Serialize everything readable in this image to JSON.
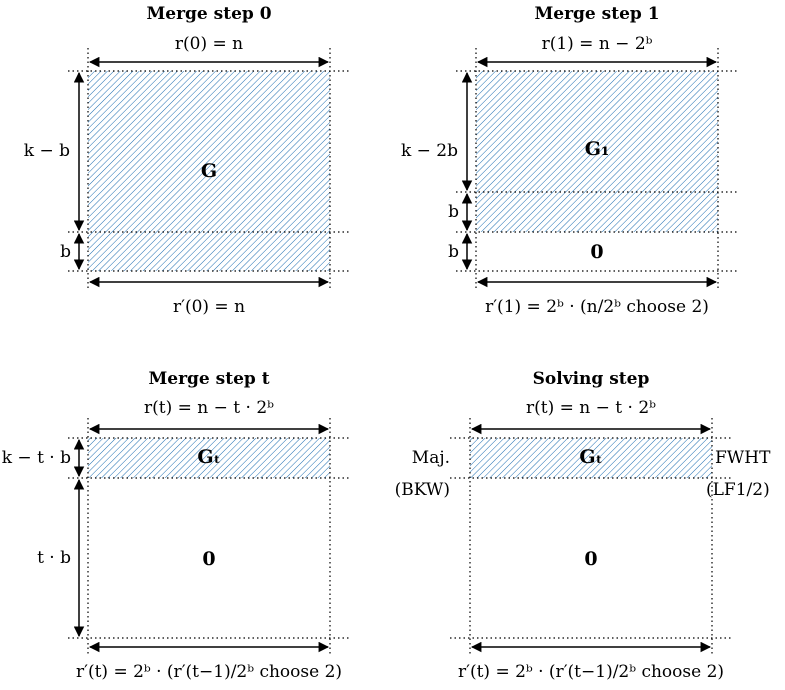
{
  "panels": [
    {
      "title": "Merge step 0",
      "top_width": "r(0) = n",
      "bottom_width": "r′(0) = n",
      "row_labels": [
        "k − b",
        "b"
      ],
      "matrix_label": "G"
    },
    {
      "title": "Merge step 1",
      "top_width": "r(1) = n − 2ᵇ",
      "bottom_width": "r′(1) = 2ᵇ · (n/2ᵇ choose 2)",
      "row_labels": [
        "k − 2b",
        "b",
        "b"
      ],
      "matrix_label": "G₁",
      "zero_label": "0"
    },
    {
      "title": "Merge step t",
      "top_width": "r(t) = n − t · 2ᵇ",
      "bottom_width": "r′(t) = 2ᵇ · (r′(t−1)/2ᵇ choose 2)",
      "row_labels": [
        "k − t · b",
        "t · b"
      ],
      "matrix_label": "Gₜ",
      "zero_label": "0"
    },
    {
      "title": "Solving step",
      "top_width": "r(t) = n − t · 2ᵇ",
      "bottom_width": "r′(t) = 2ᵇ · (r′(t−1)/2ᵇ choose 2)",
      "matrix_label": "Gₜ",
      "zero_label": "0",
      "left_note": [
        "Maj.",
        "(BKW)"
      ],
      "right_note": [
        "FWHT",
        "(LF1/2)"
      ]
    }
  ],
  "colors": {
    "hatch": "#1f6fb2",
    "line": "#000000"
  }
}
